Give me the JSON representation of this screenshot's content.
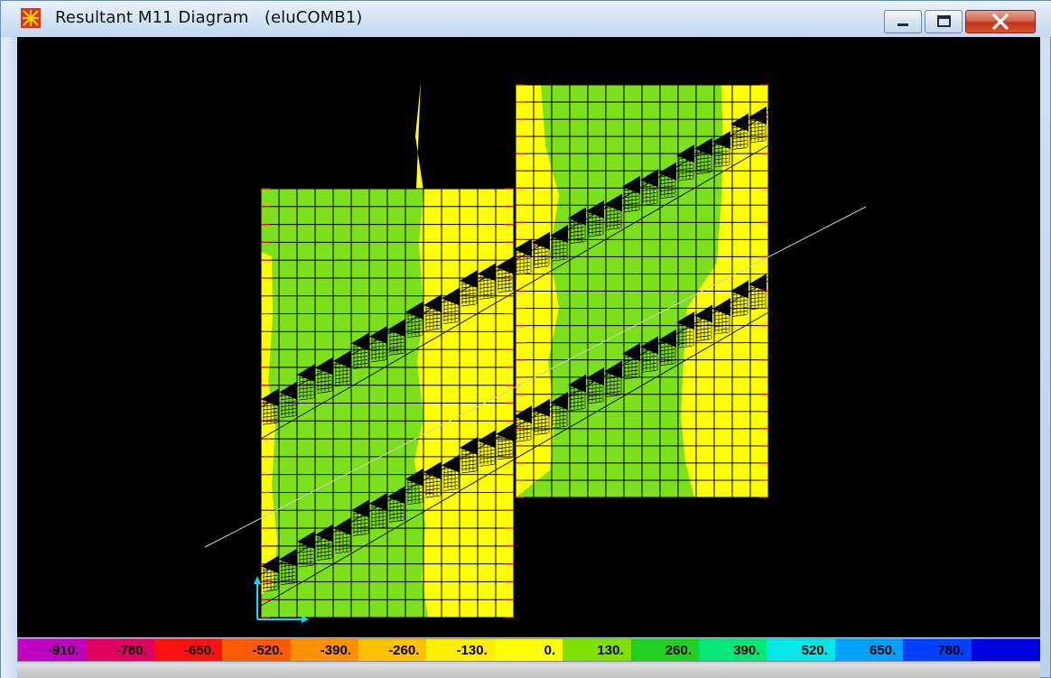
{
  "window": {
    "title": "Resultant M11 Diagram   (eluCOMB1)",
    "app_icon": "sap-app-icon",
    "controls": [
      "minimize-icon",
      "maximize-icon",
      "close-icon"
    ]
  },
  "colors": {
    "green": "#7ce01a",
    "yellow": "#ffff00",
    "mesh": "#000000",
    "edge_tick": "#e01010",
    "background": "#000000"
  },
  "legend": {
    "segments": [
      {
        "label": "-910.",
        "color": "#c000c0"
      },
      {
        "label": "-780.",
        "color": "#e00060"
      },
      {
        "label": "-650.",
        "color": "#ff1010"
      },
      {
        "label": "-520.",
        "color": "#ff5a00"
      },
      {
        "label": "-390.",
        "color": "#ff9000"
      },
      {
        "label": "-260.",
        "color": "#ffc000"
      },
      {
        "label": "-130.",
        "color": "#ffee00"
      },
      {
        "label": "0.",
        "color": "#ffff00"
      },
      {
        "label": "130.",
        "color": "#80e000"
      },
      {
        "label": "260.",
        "color": "#20d020"
      },
      {
        "label": "390.",
        "color": "#00e878"
      },
      {
        "label": "520.",
        "color": "#00e8e8"
      },
      {
        "label": "650.",
        "color": "#00a0ff"
      },
      {
        "label": "780.",
        "color": "#0040ff"
      },
      {
        "label": "",
        "color": "#0000e0"
      }
    ]
  }
}
